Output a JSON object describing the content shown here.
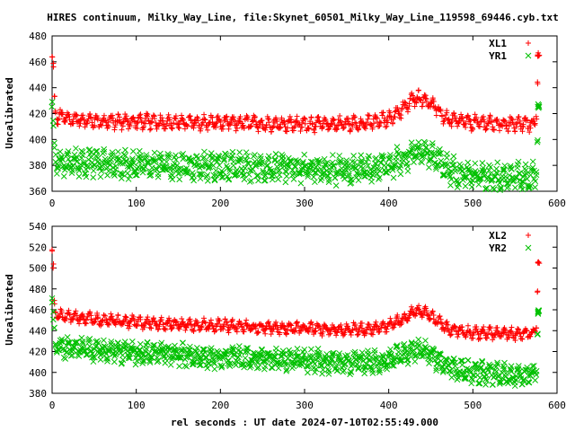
{
  "title": "HIRES continuum, Milky_Way_Line, file:Skynet_60501_Milky_Way_Line_119598_69446.cyb.txt",
  "xlabel": "rel seconds : UT date 2024-07-10T02:55:49.000",
  "colors": {
    "red": "#ff0000",
    "green": "#00c000"
  },
  "chart_data": [
    {
      "type": "scatter",
      "ylabel": "Uncalibrated",
      "xlim": [
        0,
        600
      ],
      "ylim": [
        360,
        480
      ],
      "xticks": [
        0,
        100,
        200,
        300,
        400,
        500,
        600
      ],
      "yticks": [
        360,
        380,
        400,
        420,
        440,
        460,
        480
      ],
      "grid": false,
      "legend_position": "top-right",
      "series": [
        {
          "name": "XL1",
          "marker": "plus",
          "color": "#ff0000",
          "x": [
            0,
            1,
            2,
            3,
            5,
            10,
            20,
            40,
            60,
            80,
            100,
            150,
            200,
            250,
            300,
            350,
            380,
            400,
            420,
            430,
            440,
            450,
            470,
            500,
            550,
            570,
            575,
            578,
            580
          ],
          "y": [
            463,
            462,
            443,
            425,
            417,
            418,
            416,
            415,
            414,
            414,
            414,
            413,
            413,
            412,
            412,
            412,
            413,
            416,
            425,
            432,
            432,
            428,
            415,
            413,
            412,
            412,
            413,
            466,
            462
          ]
        },
        {
          "name": "YR1",
          "marker": "cross",
          "color": "#00c000",
          "x": [
            0,
            1,
            2,
            3,
            5,
            10,
            20,
            40,
            60,
            80,
            100,
            150,
            200,
            250,
            300,
            350,
            380,
            400,
            420,
            430,
            440,
            450,
            470,
            500,
            550,
            570,
            575,
            578,
            580
          ],
          "y": [
            425,
            415,
            400,
            390,
            383,
            380,
            382,
            383,
            382,
            381,
            381,
            380,
            379,
            378,
            377,
            376,
            377,
            380,
            386,
            390,
            391,
            388,
            377,
            372,
            371,
            371,
            372,
            426,
            406
          ]
        }
      ]
    },
    {
      "type": "scatter",
      "ylabel": "Uncalibrated",
      "xlim": [
        0,
        600
      ],
      "ylim": [
        380,
        540
      ],
      "xticks": [
        0,
        100,
        200,
        300,
        400,
        500,
        600
      ],
      "yticks": [
        380,
        400,
        420,
        440,
        460,
        480,
        500,
        520,
        540
      ],
      "grid": false,
      "legend_position": "top-right",
      "series": [
        {
          "name": "XL2",
          "marker": "plus",
          "color": "#ff0000",
          "x": [
            0,
            1,
            2,
            3,
            5,
            10,
            20,
            40,
            60,
            80,
            100,
            150,
            200,
            250,
            300,
            350,
            380,
            400,
            420,
            430,
            440,
            450,
            470,
            500,
            550,
            570,
            575,
            578,
            580
          ],
          "y": [
            515,
            510,
            480,
            460,
            455,
            455,
            453,
            452,
            450,
            449,
            448,
            446,
            445,
            443,
            442,
            441,
            442,
            445,
            452,
            458,
            458,
            454,
            442,
            438,
            437,
            437,
            440,
            505,
            478
          ]
        },
        {
          "name": "YR2",
          "marker": "cross",
          "color": "#00c000",
          "x": [
            0,
            1,
            2,
            3,
            5,
            10,
            20,
            40,
            60,
            80,
            100,
            150,
            200,
            250,
            300,
            350,
            380,
            400,
            420,
            430,
            440,
            450,
            470,
            500,
            550,
            570,
            575,
            578,
            580
          ],
          "y": [
            470,
            455,
            440,
            430,
            425,
            425,
            424,
            423,
            421,
            420,
            419,
            417,
            415,
            413,
            411,
            410,
            410,
            412,
            418,
            422,
            422,
            418,
            405,
            400,
            398,
            398,
            402,
            458,
            448
          ]
        }
      ]
    }
  ]
}
